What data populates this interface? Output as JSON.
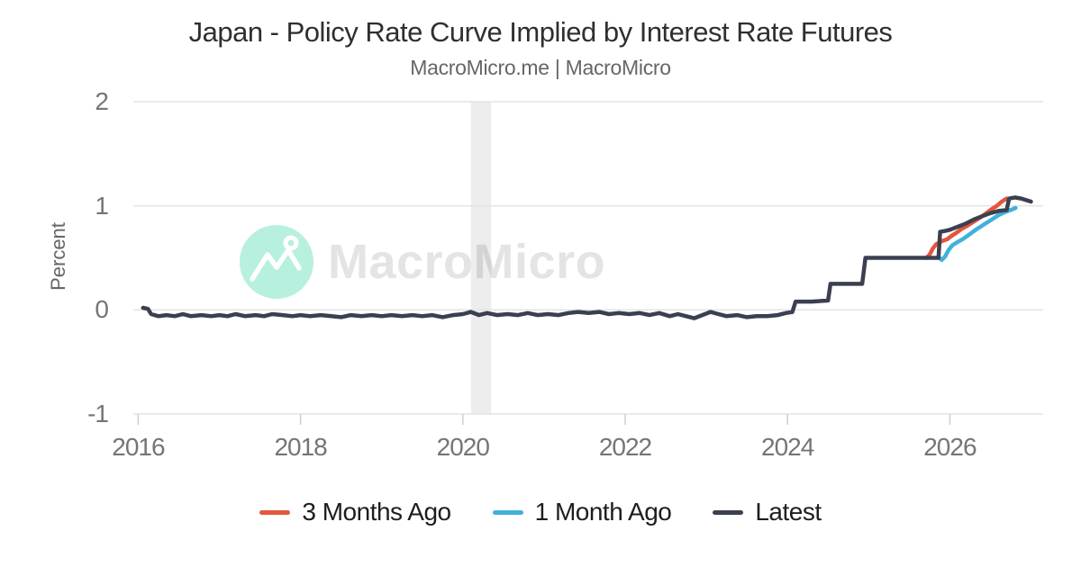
{
  "page": {
    "background": "#ffffff"
  },
  "chart_data": {
    "type": "line",
    "title": "Japan - Policy Rate Curve Implied by Interest Rate Futures",
    "subtitle": "MacroMicro.me | MacroMicro",
    "ylabel": "Percent",
    "xlabel": "",
    "unit": "percent",
    "x_domain": [
      2015.94,
      2027.15
    ],
    "y_domain": [
      -1,
      2
    ],
    "xticks": [
      2016,
      2018,
      2020,
      2022,
      2024,
      2026
    ],
    "yticks": [
      2,
      1,
      0,
      -1
    ],
    "grid": "horizontal-only",
    "grid_color": "#e4e4e4",
    "tick_color": "#cfcfcf",
    "axis_label_color": "#757575",
    "legend_position": "bottom",
    "recession_band": {
      "from": 2020.1,
      "to": 2020.35,
      "color": "rgba(0,0,0,0.07)"
    },
    "watermark": {
      "text": "MacroMicro",
      "logo_color": "#b7f0de",
      "text_color": "#e4e4e4"
    },
    "series": [
      {
        "name": "3 Months Ago",
        "color": "#e2573e",
        "points": [
          [
            2025.71,
            0.5
          ],
          [
            2025.75,
            0.53
          ],
          [
            2025.79,
            0.59
          ],
          [
            2025.83,
            0.63
          ],
          [
            2025.9,
            0.66
          ],
          [
            2025.97,
            0.68
          ],
          [
            2026.02,
            0.71
          ],
          [
            2026.08,
            0.74
          ],
          [
            2026.15,
            0.78
          ],
          [
            2026.22,
            0.81
          ],
          [
            2026.3,
            0.85
          ],
          [
            2026.38,
            0.89
          ],
          [
            2026.45,
            0.93
          ],
          [
            2026.52,
            0.97
          ],
          [
            2026.58,
            1.0
          ],
          [
            2026.64,
            1.04
          ],
          [
            2026.7,
            1.07
          ]
        ]
      },
      {
        "name": "1 Month Ago",
        "color": "#41b1dc",
        "points": [
          [
            2025.87,
            0.5
          ],
          [
            2025.9,
            0.48
          ],
          [
            2025.94,
            0.51
          ],
          [
            2025.98,
            0.57
          ],
          [
            2026.03,
            0.62
          ],
          [
            2026.09,
            0.65
          ],
          [
            2026.16,
            0.68
          ],
          [
            2026.25,
            0.73
          ],
          [
            2026.32,
            0.77
          ],
          [
            2026.4,
            0.81
          ],
          [
            2026.5,
            0.86
          ],
          [
            2026.6,
            0.91
          ],
          [
            2026.68,
            0.94
          ],
          [
            2026.75,
            0.96
          ],
          [
            2026.81,
            0.98
          ]
        ]
      },
      {
        "name": "Latest",
        "color": "#3b4050",
        "points": [
          [
            2016.06,
            0.02
          ],
          [
            2016.12,
            0.01
          ],
          [
            2016.16,
            -0.04
          ],
          [
            2016.25,
            -0.06
          ],
          [
            2016.35,
            -0.05
          ],
          [
            2016.45,
            -0.06
          ],
          [
            2016.55,
            -0.04
          ],
          [
            2016.65,
            -0.06
          ],
          [
            2016.78,
            -0.05
          ],
          [
            2016.9,
            -0.06
          ],
          [
            2017.0,
            -0.05
          ],
          [
            2017.1,
            -0.06
          ],
          [
            2017.2,
            -0.04
          ],
          [
            2017.32,
            -0.06
          ],
          [
            2017.45,
            -0.05
          ],
          [
            2017.55,
            -0.06
          ],
          [
            2017.65,
            -0.04
          ],
          [
            2017.78,
            -0.05
          ],
          [
            2017.9,
            -0.06
          ],
          [
            2018.0,
            -0.05
          ],
          [
            2018.12,
            -0.06
          ],
          [
            2018.25,
            -0.05
          ],
          [
            2018.38,
            -0.06
          ],
          [
            2018.5,
            -0.07
          ],
          [
            2018.62,
            -0.05
          ],
          [
            2018.75,
            -0.06
          ],
          [
            2018.88,
            -0.05
          ],
          [
            2019.0,
            -0.06
          ],
          [
            2019.12,
            -0.05
          ],
          [
            2019.25,
            -0.06
          ],
          [
            2019.38,
            -0.05
          ],
          [
            2019.5,
            -0.06
          ],
          [
            2019.62,
            -0.05
          ],
          [
            2019.75,
            -0.07
          ],
          [
            2019.88,
            -0.05
          ],
          [
            2020.0,
            -0.04
          ],
          [
            2020.1,
            -0.02
          ],
          [
            2020.2,
            -0.05
          ],
          [
            2020.3,
            -0.03
          ],
          [
            2020.42,
            -0.05
          ],
          [
            2020.55,
            -0.04
          ],
          [
            2020.68,
            -0.05
          ],
          [
            2020.8,
            -0.03
          ],
          [
            2020.92,
            -0.05
          ],
          [
            2021.05,
            -0.04
          ],
          [
            2021.18,
            -0.05
          ],
          [
            2021.3,
            -0.03
          ],
          [
            2021.42,
            -0.02
          ],
          [
            2021.55,
            -0.03
          ],
          [
            2021.68,
            -0.02
          ],
          [
            2021.8,
            -0.04
          ],
          [
            2021.92,
            -0.03
          ],
          [
            2022.05,
            -0.04
          ],
          [
            2022.18,
            -0.03
          ],
          [
            2022.3,
            -0.05
          ],
          [
            2022.42,
            -0.03
          ],
          [
            2022.55,
            -0.06
          ],
          [
            2022.65,
            -0.04
          ],
          [
            2022.75,
            -0.06
          ],
          [
            2022.85,
            -0.08
          ],
          [
            2022.95,
            -0.05
          ],
          [
            2023.05,
            -0.02
          ],
          [
            2023.15,
            -0.04
          ],
          [
            2023.25,
            -0.06
          ],
          [
            2023.38,
            -0.05
          ],
          [
            2023.5,
            -0.07
          ],
          [
            2023.62,
            -0.06
          ],
          [
            2023.75,
            -0.06
          ],
          [
            2023.88,
            -0.05
          ],
          [
            2023.98,
            -0.03
          ],
          [
            2024.06,
            -0.02
          ],
          [
            2024.1,
            0.08
          ],
          [
            2024.3,
            0.08
          ],
          [
            2024.5,
            0.09
          ],
          [
            2024.53,
            0.25
          ],
          [
            2024.7,
            0.25
          ],
          [
            2024.92,
            0.25
          ],
          [
            2024.96,
            0.5
          ],
          [
            2025.2,
            0.5
          ],
          [
            2025.5,
            0.5
          ],
          [
            2025.8,
            0.5
          ],
          [
            2025.86,
            0.5
          ],
          [
            2025.88,
            0.75
          ],
          [
            2025.95,
            0.76
          ],
          [
            2026.0,
            0.77
          ],
          [
            2026.1,
            0.8
          ],
          [
            2026.2,
            0.83
          ],
          [
            2026.3,
            0.87
          ],
          [
            2026.4,
            0.9
          ],
          [
            2026.5,
            0.93
          ],
          [
            2026.6,
            0.95
          ],
          [
            2026.7,
            0.96
          ],
          [
            2026.73,
            1.07
          ],
          [
            2026.8,
            1.08
          ],
          [
            2026.88,
            1.07
          ],
          [
            2027.0,
            1.04
          ]
        ]
      }
    ]
  }
}
